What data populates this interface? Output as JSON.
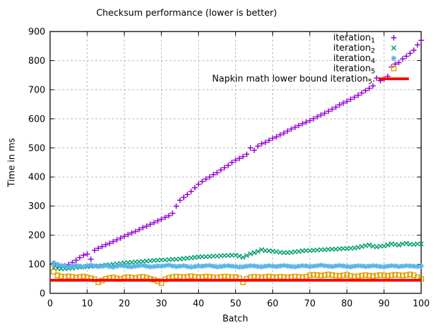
{
  "chart_data": {
    "type": "scatter",
    "title": "Checksum performance (lower is better)",
    "xlabel": "Batch",
    "ylabel": "Time in ms",
    "xlim": [
      0,
      100
    ],
    "ylim": [
      0,
      900
    ],
    "xticks": [
      0,
      10,
      20,
      30,
      40,
      50,
      60,
      70,
      80,
      90,
      100
    ],
    "yticks": [
      0,
      100,
      200,
      300,
      400,
      500,
      600,
      700,
      800,
      900
    ],
    "grid": true,
    "grid_color": "#b9b9b9",
    "border_color": "#000000",
    "background": "#ffffff",
    "legend_position": "top-right-inside",
    "x_start": 1,
    "x_step": 1,
    "series": [
      {
        "name": "iteration",
        "subscript": "1",
        "marker": "plus",
        "color": "#9400d3",
        "values": [
          103,
          97,
          93,
          95,
          99,
          106,
          114,
          123,
          131,
          135,
          117,
          148,
          155,
          161,
          167,
          172,
          178,
          184,
          190,
          196,
          202,
          208,
          213,
          219,
          226,
          231,
          237,
          243,
          249,
          255,
          261,
          267,
          275,
          300,
          320,
          330,
          340,
          350,
          363,
          375,
          385,
          393,
          400,
          408,
          415,
          424,
          432,
          440,
          450,
          458,
          464,
          470,
          478,
          500,
          492,
          506,
          514,
          519,
          526,
          533,
          538,
          545,
          551,
          558,
          565,
          571,
          577,
          583,
          588,
          594,
          600,
          607,
          613,
          619,
          626,
          633,
          640,
          648,
          654,
          660,
          667,
          674,
          681,
          689,
          697,
          705,
          713,
          740,
          731,
          737,
          746,
          778,
          788,
          793,
          806,
          815,
          825,
          836,
          854,
          870
        ]
      },
      {
        "name": "iteration",
        "subscript": "2",
        "marker": "cross",
        "color": "#009e73",
        "values": [
          88,
          86,
          84,
          85,
          86,
          87,
          89,
          90,
          91,
          92,
          93,
          94,
          94,
          95,
          97,
          98,
          100,
          101,
          103,
          105,
          106,
          107,
          108,
          109,
          110,
          111,
          112,
          113,
          114,
          115,
          115,
          116,
          117,
          117,
          118,
          120,
          121,
          122,
          124,
          125,
          126,
          126,
          127,
          128,
          128,
          129,
          130,
          130,
          131,
          131,
          128,
          124,
          130,
          136,
          140,
          144,
          150,
          147,
          146,
          145,
          143,
          141,
          140,
          140,
          141,
          143,
          144,
          146,
          147,
          147,
          148,
          149,
          150,
          150,
          151,
          152,
          152,
          153,
          154,
          154,
          155,
          156,
          158,
          161,
          164,
          166,
          162,
          160,
          162,
          163,
          166,
          170,
          168,
          166,
          170,
          172,
          169,
          168,
          170,
          170
        ]
      },
      {
        "name": "iteration",
        "subscript": "4",
        "marker": "asterisk",
        "color": "#56b4e9",
        "values": [
          105,
          100,
          96,
          93,
          92,
          94,
          96,
          93,
          91,
          95,
          97,
          94,
          92,
          93,
          95,
          92,
          90,
          93,
          96,
          94,
          92,
          91,
          93,
          95,
          96,
          93,
          91,
          92,
          94,
          93,
          95,
          97,
          94,
          92,
          93,
          95,
          92,
          90,
          92,
          94,
          93,
          95,
          96,
          93,
          91,
          92,
          94,
          95,
          93,
          92,
          90,
          91,
          93,
          95,
          94,
          92,
          91,
          93,
          95,
          93,
          92,
          94,
          96,
          94,
          92,
          91,
          93,
          95,
          94,
          92,
          93,
          95,
          97,
          95,
          93,
          92,
          94,
          96,
          94,
          92,
          91,
          93,
          95,
          94,
          92,
          93,
          95,
          94,
          92,
          91,
          93,
          95,
          94,
          92,
          93,
          95,
          94,
          93,
          92,
          94
        ]
      },
      {
        "name": "iteration",
        "subscript": "5",
        "marker": "square",
        "color": "#e69f00",
        "values": [
          74,
          62,
          58,
          56,
          59,
          57,
          54,
          56,
          58,
          55,
          52,
          48,
          38,
          44,
          50,
          53,
          55,
          52,
          49,
          53,
          56,
          54,
          52,
          55,
          57,
          54,
          50,
          47,
          42,
          35,
          48,
          53,
          56,
          58,
          57,
          55,
          57,
          59,
          57,
          55,
          56,
          58,
          57,
          55,
          54,
          56,
          58,
          57,
          55,
          56,
          52,
          38,
          50,
          55,
          57,
          56,
          54,
          56,
          58,
          56,
          55,
          57,
          56,
          54,
          56,
          58,
          57,
          55,
          57,
          62,
          64,
          63,
          61,
          63,
          65,
          63,
          61,
          60,
          62,
          64,
          60,
          57,
          59,
          61,
          63,
          61,
          59,
          61,
          63,
          62,
          60,
          62,
          64,
          63,
          61,
          63,
          65,
          62,
          55,
          50
        ]
      }
    ],
    "lower_bound": {
      "name": "Napkin math lower bound iteration",
      "subscript": "5",
      "suffix": ".",
      "style": "line",
      "color": "#ff0000",
      "value": 45,
      "x_from": 0,
      "x_to": 100
    }
  }
}
